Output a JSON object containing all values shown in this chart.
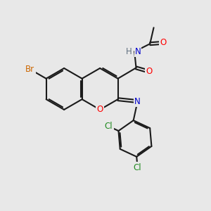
{
  "bg_color": "#e8e8e8",
  "bond_color": "#1a1a1a",
  "bond_width": 1.5,
  "atom_colors": {
    "Br": "#cc6600",
    "O": "#ff0000",
    "N": "#0000cc",
    "Cl": "#228b22",
    "H": "#607080",
    "C": "#1a1a1a"
  },
  "font_size": 8.5
}
